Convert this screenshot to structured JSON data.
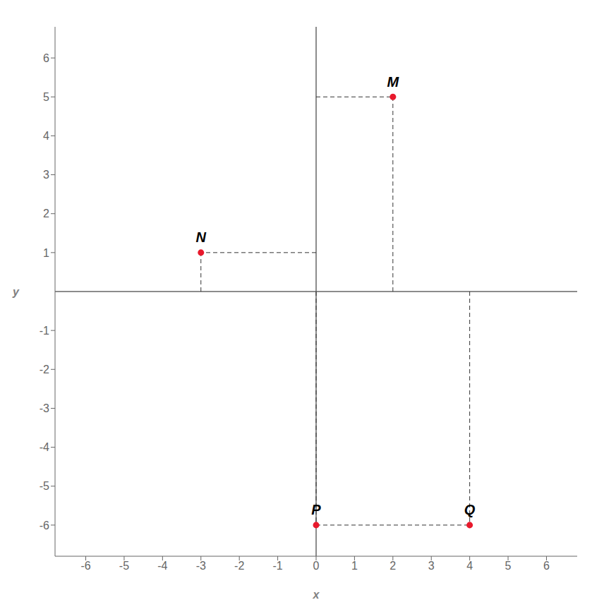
{
  "chart_data": {
    "type": "scatter",
    "x": [
      2,
      -3,
      0,
      4
    ],
    "values": [
      5,
      1,
      -6,
      -6
    ],
    "point_labels": [
      "M",
      "N",
      "P",
      "Q"
    ],
    "color": "#e8192c",
    "xlabel": "x",
    "ylabel": "y",
    "xlim": [
      -6.8,
      6.8
    ],
    "ylim": [
      -6.8,
      6.8
    ],
    "xticks": [
      -6,
      -5,
      -4,
      -3,
      -2,
      -1,
      0,
      1,
      2,
      3,
      4,
      5,
      6
    ],
    "yticks": [
      -6,
      -5,
      -4,
      -3,
      -2,
      -1,
      1,
      2,
      3,
      4,
      5,
      6
    ],
    "grid": false
  }
}
